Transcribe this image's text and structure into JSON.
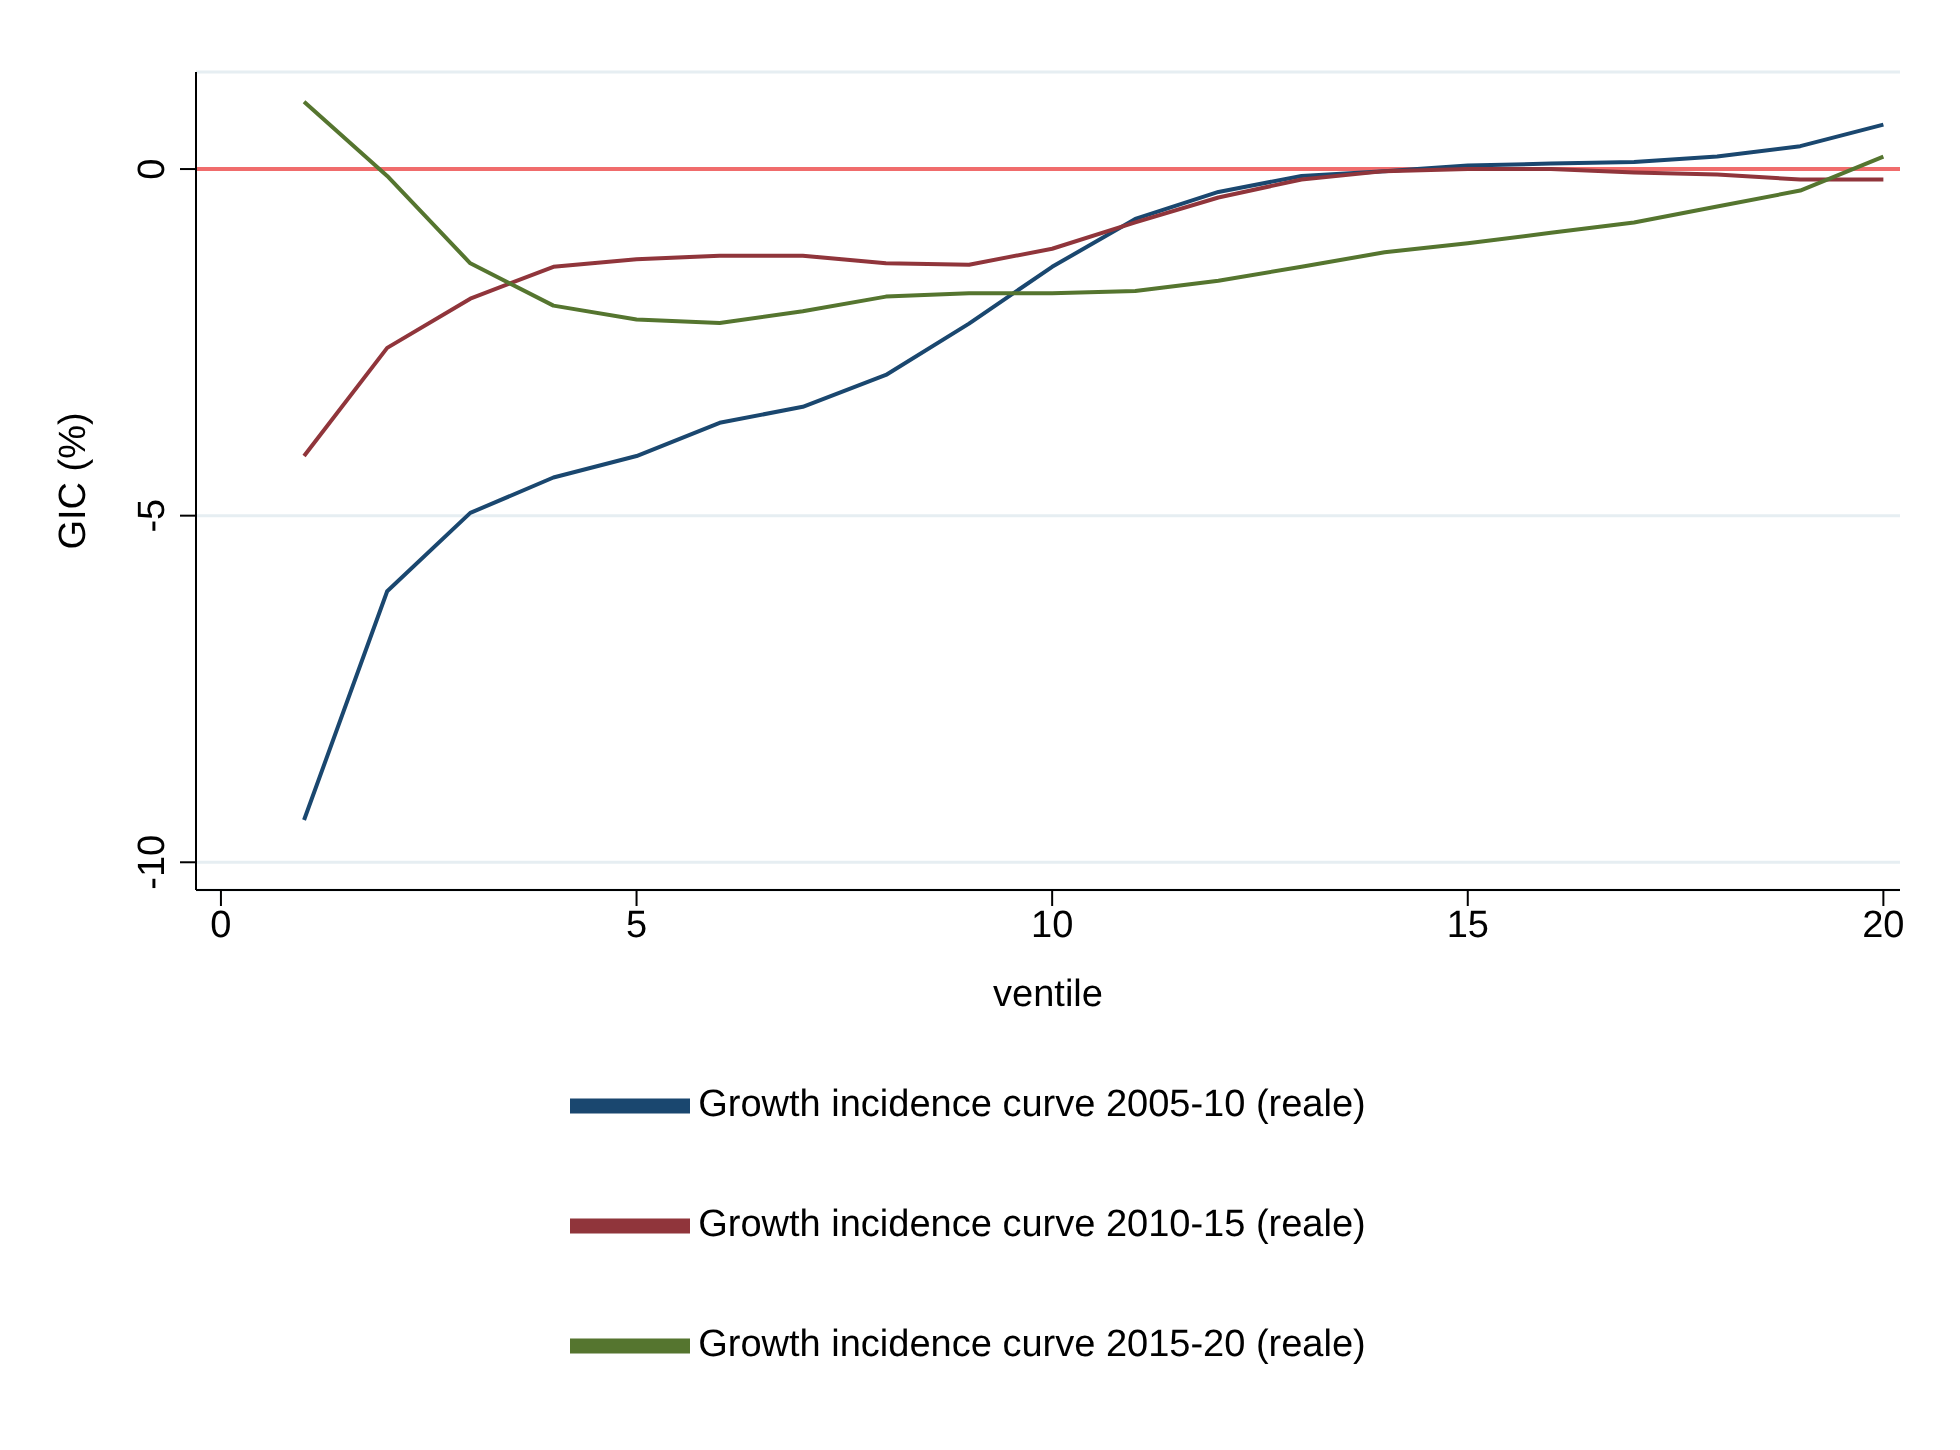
{
  "chart_data": {
    "type": "line",
    "xlabel": "ventile",
    "ylabel": "GIC (%)",
    "x": [
      1,
      2,
      3,
      4,
      5,
      6,
      7,
      8,
      9,
      10,
      11,
      12,
      13,
      14,
      15,
      16,
      17,
      18,
      19,
      20
    ],
    "xlim": [
      -0.3,
      20.2
    ],
    "xticks": [
      0,
      5,
      10,
      15,
      20
    ],
    "ylim": [
      -10.4,
      1.4
    ],
    "yticks": [
      -10,
      -5,
      0
    ],
    "grid": "y",
    "legend": "bottom",
    "marker": "none",
    "line_style": "solid",
    "ref_lines": [
      {
        "axis": "y",
        "value": 0,
        "color": "#f06c6c"
      }
    ],
    "series": [
      {
        "name": "Growth incidence curve 2005-10 (reale)",
        "color": "#1a476f",
        "values": [
          -9.39,
          -6.09,
          -4.96,
          -4.45,
          -4.14,
          -3.66,
          -3.43,
          -2.97,
          -2.23,
          -1.41,
          -0.72,
          -0.33,
          -0.1,
          -0.03,
          0.05,
          0.08,
          0.1,
          0.18,
          0.33,
          0.64
        ]
      },
      {
        "name": "Growth incidence curve 2010-15 (reale)",
        "color": "#90353b",
        "values": [
          -4.14,
          -2.58,
          -1.87,
          -1.41,
          -1.3,
          -1.25,
          -1.25,
          -1.36,
          -1.38,
          -1.15,
          -0.77,
          -0.41,
          -0.15,
          -0.03,
          0,
          0,
          -0.05,
          -0.08,
          -0.15,
          -0.15
        ]
      },
      {
        "name": "Growth incidence curve 2015-20 (reale)",
        "color": "#55752f",
        "values": [
          0.97,
          -0.1,
          -1.36,
          -1.97,
          -2.17,
          -2.22,
          -2.05,
          -1.84,
          -1.79,
          -1.79,
          -1.76,
          -1.61,
          -1.41,
          -1.2,
          -1.07,
          -0.92,
          -0.77,
          -0.54,
          -0.31,
          0.18
        ]
      }
    ]
  }
}
